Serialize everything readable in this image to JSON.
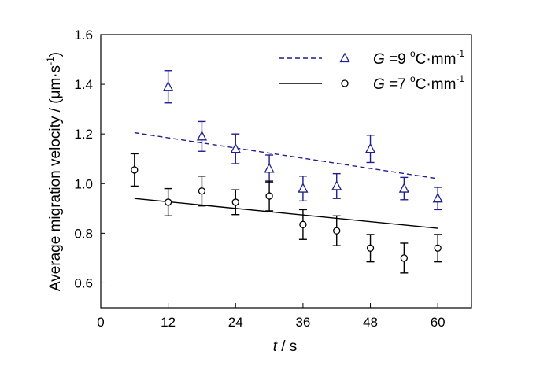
{
  "chart_data": {
    "type": "scatter",
    "x_label": {
      "var": "t",
      "rest": " / s"
    },
    "y_label": {
      "main": "Average migration velocity / (μm·s",
      "exp": "-1",
      "close": ")"
    },
    "xlim": [
      0,
      66
    ],
    "ylim": [
      0.5,
      1.6
    ],
    "x_ticks": [
      0,
      12,
      24,
      36,
      48,
      60
    ],
    "y_ticks": [
      0.6,
      0.8,
      1.0,
      1.2,
      1.4,
      1.6
    ],
    "x_tick_labels": [
      "0",
      "12",
      "24",
      "36",
      "48",
      "60"
    ],
    "y_tick_labels": [
      "0.6",
      "0.8",
      "1.0",
      "1.2",
      "1.4",
      "1.6"
    ],
    "grid": false,
    "legend_position": "top-right",
    "series": [
      {
        "key": "g9",
        "legend": {
          "var": "G",
          "value": " =9 ",
          "unit_pre": "C·mm",
          "deg": "o",
          "exp": "-1"
        },
        "marker": "triangle",
        "color": "#1f1f8f",
        "fit_style": "dashed",
        "x": [
          12,
          18,
          24,
          30,
          36,
          42,
          48,
          54,
          60
        ],
        "y": [
          1.39,
          1.19,
          1.14,
          1.06,
          0.98,
          0.99,
          1.14,
          0.98,
          0.94
        ],
        "err": [
          0.065,
          0.06,
          0.06,
          0.055,
          0.05,
          0.05,
          0.055,
          0.045,
          0.045
        ],
        "fit": {
          "x": [
            6,
            60
          ],
          "y": [
            1.205,
            1.02
          ]
        }
      },
      {
        "key": "g7",
        "legend": {
          "var": "G",
          "value": " =7 ",
          "unit_pre": "C·mm",
          "deg": "o",
          "exp": "-1"
        },
        "marker": "circle",
        "color": "#000000",
        "fit_style": "solid",
        "x": [
          6,
          12,
          18,
          24,
          30,
          36,
          42,
          48,
          54,
          60
        ],
        "y": [
          1.055,
          0.925,
          0.97,
          0.925,
          0.95,
          0.835,
          0.81,
          0.74,
          0.7,
          0.74
        ],
        "err": [
          0.065,
          0.055,
          0.06,
          0.05,
          0.06,
          0.06,
          0.06,
          0.055,
          0.06,
          0.055
        ],
        "fit": {
          "x": [
            6,
            60
          ],
          "y": [
            0.94,
            0.82
          ]
        }
      }
    ]
  }
}
